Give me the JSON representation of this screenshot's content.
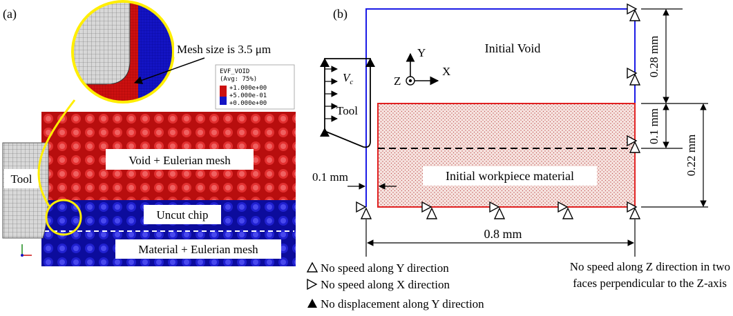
{
  "panel_a": {
    "label": "(a)",
    "mesh_size": "Mesh size is 3.5 μm",
    "legend": {
      "title": "EVF_VOID",
      "subtitle": "(Avg: 75%)",
      "entries": [
        "+1.000e+00",
        "+5.000e-01",
        "+0.000e+00"
      ]
    },
    "labels": {
      "void": "Void + Eulerian mesh",
      "tool": "Tool",
      "uncut_chip": "Uncut chip",
      "material": "Material + Eulerian mesh"
    },
    "colors": {
      "void": "#cc1010",
      "material": "#1414c4",
      "callout": "#ffee00"
    }
  },
  "panel_b": {
    "label": "(b)",
    "void_label": "Initial Void",
    "workpiece_label": "Initial workpiece material",
    "tool_label": "Tool",
    "vc_label": "V",
    "vc_sub": "c",
    "axes": {
      "y": "Y",
      "x": "X",
      "z": "Z"
    },
    "dims": {
      "void_height": "0.28 mm",
      "uncut_depth": "0.1 mm",
      "workpiece_height": "0.22 mm",
      "tool_gap": "0.1 mm",
      "length": "0.8 mm"
    },
    "legend": {
      "y_speed": "No speed along Y direction",
      "x_speed": "No speed along X direction",
      "y_disp": "No displacement along Y direction",
      "z_speed_1": "No speed along Z direction in two",
      "z_speed_2": "faces perpendicular to the Z-axis"
    },
    "colors": {
      "void_border": "#1a1ae6",
      "workpiece_border": "#e02020",
      "workpiece_fill": "#f3dcd8"
    }
  }
}
